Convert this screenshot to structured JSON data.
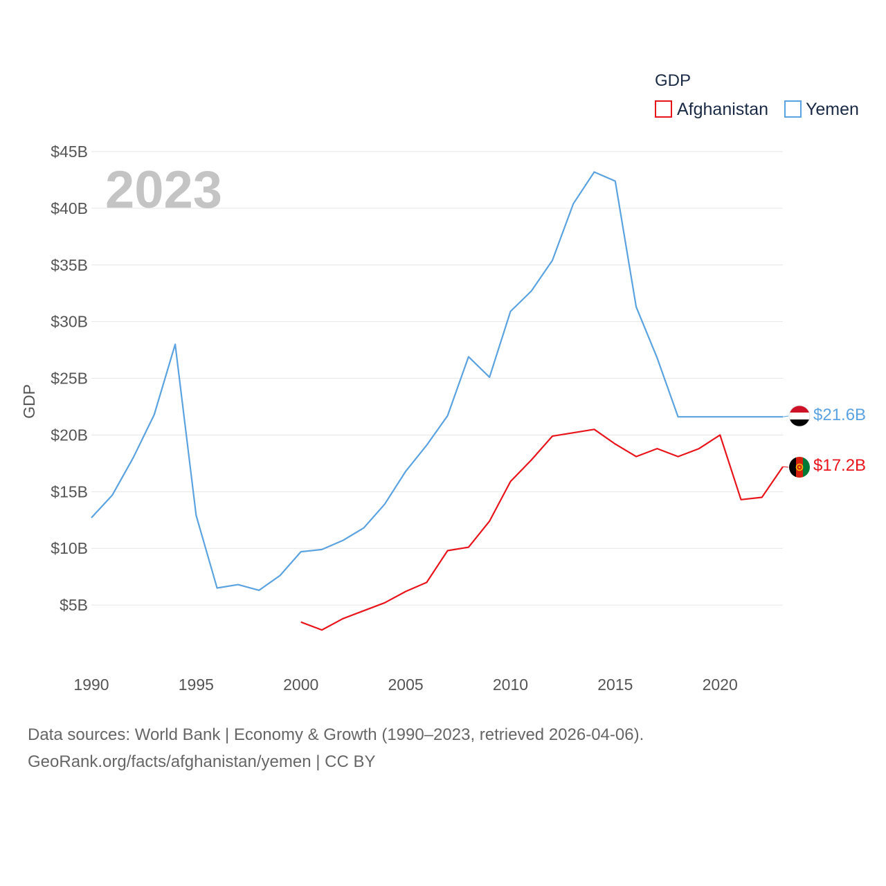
{
  "legend": {
    "title": "GDP"
  },
  "year_label": "2023",
  "footer": {
    "line1": "Data sources: World Bank | Economy & Growth (1990–2023, retrieved 2026-04-06).",
    "line2": "GeoRank.org/facts/afghanistan/yemen | CC BY"
  },
  "colors": {
    "afghanistan": "#e8141b",
    "yemen": "#5ba3e0"
  },
  "chart_data": {
    "type": "line",
    "title": "",
    "xlabel": "",
    "ylabel": "GDP",
    "xlim": [
      1990,
      2023
    ],
    "ylim": [
      0,
      45
    ],
    "x_ticks": [
      1990,
      1995,
      2000,
      2005,
      2010,
      2015,
      2020
    ],
    "y_ticks": [
      5,
      10,
      15,
      20,
      25,
      30,
      35,
      40,
      45
    ],
    "y_tick_labels": [
      "$5B",
      "$10B",
      "$15B",
      "$20B",
      "$25B",
      "$30B",
      "$35B",
      "$40B",
      "$45B"
    ],
    "legend_position": "top-right",
    "series": [
      {
        "name": "Afghanistan",
        "key": "afghanistan",
        "end_label": "$17.2B",
        "x": [
          2000,
          2001,
          2002,
          2003,
          2004,
          2005,
          2006,
          2007,
          2008,
          2009,
          2010,
          2011,
          2012,
          2013,
          2014,
          2015,
          2016,
          2017,
          2018,
          2019,
          2020,
          2021,
          2022,
          2023
        ],
        "values": [
          3.5,
          2.8,
          3.8,
          4.5,
          5.2,
          6.2,
          7.0,
          9.8,
          10.1,
          12.4,
          15.9,
          17.8,
          19.9,
          20.2,
          20.5,
          19.2,
          18.1,
          18.8,
          18.1,
          18.8,
          20.0,
          14.3,
          14.5,
          17.2
        ]
      },
      {
        "name": "Yemen",
        "key": "yemen",
        "end_label": "$21.6B",
        "x": [
          1990,
          1991,
          1992,
          1993,
          1994,
          1995,
          1996,
          1997,
          1998,
          1999,
          2000,
          2001,
          2002,
          2003,
          2004,
          2005,
          2006,
          2007,
          2008,
          2009,
          2010,
          2011,
          2012,
          2013,
          2014,
          2015,
          2016,
          2017,
          2018,
          2019,
          2020,
          2021,
          2022,
          2023
        ],
        "values": [
          12.7,
          14.7,
          18.0,
          21.8,
          28.0,
          12.9,
          6.5,
          6.8,
          6.3,
          7.6,
          9.7,
          9.9,
          10.7,
          11.8,
          13.9,
          16.8,
          19.1,
          21.7,
          26.9,
          25.1,
          30.9,
          32.7,
          35.4,
          40.4,
          43.2,
          42.4,
          31.3,
          26.8,
          21.6,
          21.6,
          21.6,
          21.6,
          21.6,
          21.6
        ]
      }
    ]
  }
}
